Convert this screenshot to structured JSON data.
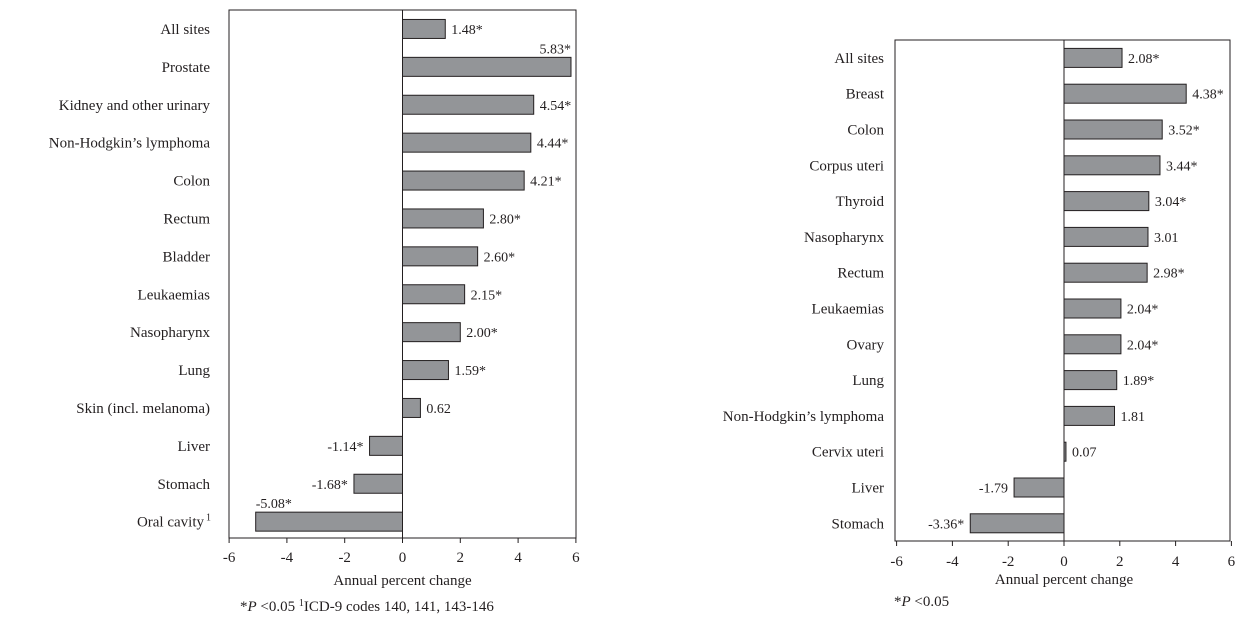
{
  "chart_data": [
    {
      "type": "bar",
      "orientation": "horizontal",
      "categories": [
        "All sites",
        "Prostate",
        "Kidney and other urinary",
        "Non-Hodgkin’s lymphoma",
        "Colon",
        "Rectum",
        "Bladder",
        "Leukaemias",
        "Nasopharynx",
        "Lung",
        "Skin (incl. melanoma)",
        "Liver",
        "Stomach",
        "Oral cavity"
      ],
      "category_superscripts": [
        "",
        "",
        "",
        "",
        "",
        "",
        "",
        "",
        "",
        "",
        "",
        "",
        "",
        "1"
      ],
      "values": [
        1.48,
        5.83,
        4.54,
        4.44,
        4.21,
        2.8,
        2.6,
        2.15,
        2.0,
        1.59,
        0.62,
        -1.14,
        -1.68,
        -5.08
      ],
      "value_labels": [
        "1.48*",
        "5.83*",
        "4.54*",
        "4.44*",
        "4.21*",
        "2.80*",
        "2.60*",
        "2.15*",
        "2.00*",
        "1.59*",
        "0.62",
        "-1.14*",
        "-1.68*",
        "-5.08*"
      ],
      "xlabel": "Annual percent change",
      "xlim": [
        -6,
        6
      ],
      "xticks": [
        "-6",
        "-4",
        "-2",
        "0",
        "2",
        "4",
        "6"
      ],
      "grid": false,
      "bar_color": "#939598",
      "footnote": {
        "p_prefix": "*",
        "p_symbol": "P",
        "p_rest": " <0.05 ",
        "sup": "1",
        "rest": "ICD-9 codes 140, 141, 143-146"
      }
    },
    {
      "type": "bar",
      "orientation": "horizontal",
      "categories": [
        "All sites",
        "Breast",
        "Colon",
        "Corpus uteri",
        "Thyroid",
        "Nasopharynx",
        "Rectum",
        "Leukaemias",
        "Ovary",
        "Lung",
        "Non-Hodgkin’s lymphoma",
        "Cervix uteri",
        "Liver",
        "Stomach"
      ],
      "values": [
        2.08,
        4.38,
        3.52,
        3.44,
        3.04,
        3.01,
        2.98,
        2.04,
        2.04,
        1.89,
        1.81,
        0.07,
        -1.79,
        -3.36
      ],
      "value_labels": [
        "2.08*",
        "4.38*",
        "3.52*",
        "3.44*",
        "3.04*",
        "3.01",
        "2.98*",
        "2.04*",
        "2.04*",
        "1.89*",
        "1.81",
        "0.07",
        "-1.79",
        "-3.36*"
      ],
      "xlabel": "Annual percent change",
      "xlim": [
        -6,
        6
      ],
      "xticks": [
        "-6",
        "-4",
        "-2",
        "0",
        "2",
        "4",
        "6"
      ],
      "grid": false,
      "bar_color": "#939598",
      "footnote": {
        "p_prefix": "*",
        "p_symbol": "P",
        "p_rest": " <0.05"
      }
    }
  ]
}
